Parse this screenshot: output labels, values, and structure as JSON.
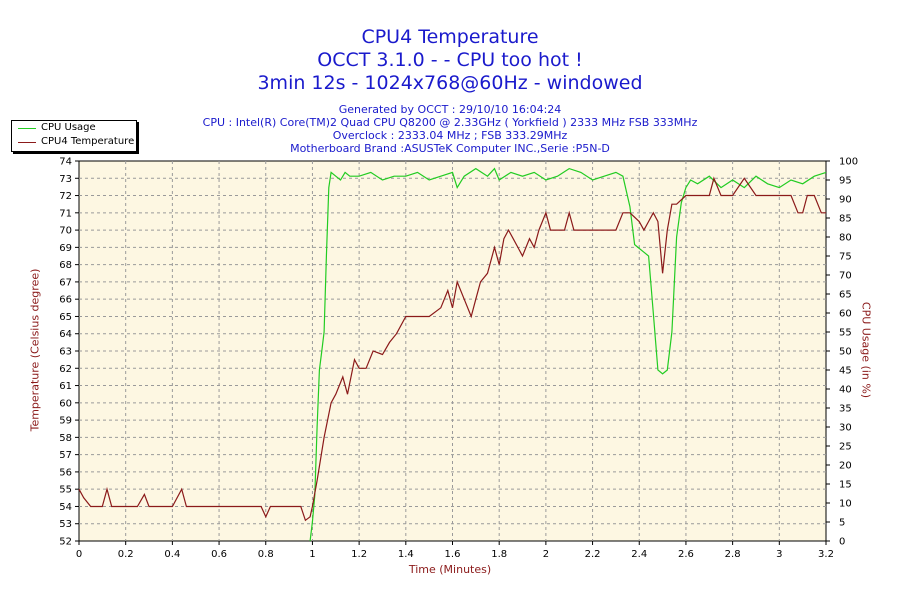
{
  "header": {
    "title_line1": "CPU4 Temperature",
    "title_line2": "OCCT 3.1.0 -  - CPU too hot !",
    "title_line3": "3min 12s - 1024x768@60Hz - windowed",
    "info_line1": "Generated by OCCT : 29/10/10 16:04:24",
    "info_line2": "CPU : Intel(R) Core(TM)2 Quad CPU Q8200 @ 2.33GHz ( Yorkfield ) 2333 MHz FSB 333MHz",
    "info_line3": "Overclock : 2333.04 MHz ; FSB 333.29MHz",
    "info_line4": "Motherboard Brand :ASUSTeK Computer INC.,Serie :P5N-D"
  },
  "chart_data": {
    "type": "line",
    "xlabel": "Time (Minutes)",
    "ylabel_left": "Temperature (Celsius degree)",
    "ylabel_right": "CPU Usage (in %)",
    "xlim": [
      0,
      3.2
    ],
    "ylim_left": [
      52,
      74
    ],
    "ylim_right": [
      0,
      100
    ],
    "grid": true,
    "legend_position": "top-left",
    "background_color": "#fdf7e2",
    "x_ticks": [
      "0",
      "0.2",
      "0.4",
      "0.6",
      "0.8",
      "1",
      "1.2",
      "1.4",
      "1.6",
      "1.8",
      "2",
      "2.2",
      "2.4",
      "2.6",
      "2.8",
      "3",
      "3.2"
    ],
    "y_ticks_left": [
      "52",
      "53",
      "54",
      "55",
      "56",
      "57",
      "58",
      "59",
      "60",
      "61",
      "62",
      "63",
      "64",
      "65",
      "66",
      "67",
      "68",
      "69",
      "70",
      "71",
      "72",
      "73",
      "74"
    ],
    "y_ticks_right": [
      "0",
      "5",
      "10",
      "15",
      "20",
      "25",
      "30",
      "35",
      "40",
      "45",
      "50",
      "55",
      "60",
      "65",
      "70",
      "75",
      "80",
      "85",
      "90",
      "95",
      "100"
    ],
    "series": [
      {
        "name": "CPU Usage",
        "axis": "right",
        "color": "#22cc22",
        "points": [
          [
            0.99,
            0
          ],
          [
            1.0,
            5
          ],
          [
            1.01,
            12
          ],
          [
            1.02,
            30
          ],
          [
            1.03,
            45
          ],
          [
            1.04,
            50
          ],
          [
            1.05,
            55
          ],
          [
            1.06,
            75
          ],
          [
            1.07,
            93
          ],
          [
            1.08,
            97
          ],
          [
            1.1,
            96
          ],
          [
            1.12,
            95
          ],
          [
            1.14,
            97
          ],
          [
            1.16,
            96
          ],
          [
            1.2,
            96
          ],
          [
            1.25,
            97
          ],
          [
            1.3,
            95
          ],
          [
            1.35,
            96
          ],
          [
            1.4,
            96
          ],
          [
            1.45,
            97
          ],
          [
            1.5,
            95
          ],
          [
            1.55,
            96
          ],
          [
            1.6,
            97
          ],
          [
            1.62,
            93
          ],
          [
            1.65,
            96
          ],
          [
            1.7,
            98
          ],
          [
            1.75,
            96
          ],
          [
            1.78,
            98
          ],
          [
            1.8,
            95
          ],
          [
            1.85,
            97
          ],
          [
            1.9,
            96
          ],
          [
            1.95,
            97
          ],
          [
            2.0,
            95
          ],
          [
            2.05,
            96
          ],
          [
            2.1,
            98
          ],
          [
            2.15,
            97
          ],
          [
            2.2,
            95
          ],
          [
            2.25,
            96
          ],
          [
            2.3,
            97
          ],
          [
            2.33,
            96
          ],
          [
            2.36,
            88
          ],
          [
            2.38,
            78
          ],
          [
            2.4,
            77
          ],
          [
            2.42,
            76
          ],
          [
            2.44,
            75
          ],
          [
            2.46,
            60
          ],
          [
            2.48,
            45
          ],
          [
            2.5,
            44
          ],
          [
            2.52,
            45
          ],
          [
            2.54,
            55
          ],
          [
            2.56,
            80
          ],
          [
            2.58,
            89
          ],
          [
            2.6,
            93
          ],
          [
            2.62,
            95
          ],
          [
            2.65,
            94
          ],
          [
            2.7,
            96
          ],
          [
            2.75,
            93
          ],
          [
            2.8,
            95
          ],
          [
            2.85,
            93
          ],
          [
            2.9,
            96
          ],
          [
            2.95,
            94
          ],
          [
            3.0,
            93
          ],
          [
            3.05,
            95
          ],
          [
            3.1,
            94
          ],
          [
            3.15,
            96
          ],
          [
            3.2,
            97
          ]
        ]
      },
      {
        "name": "CPU4 Temperature",
        "axis": "left",
        "color": "#8b1a1a",
        "points": [
          [
            0.0,
            55
          ],
          [
            0.02,
            54.5
          ],
          [
            0.05,
            54
          ],
          [
            0.1,
            54
          ],
          [
            0.12,
            55
          ],
          [
            0.14,
            54
          ],
          [
            0.2,
            54
          ],
          [
            0.25,
            54
          ],
          [
            0.28,
            54.7
          ],
          [
            0.3,
            54
          ],
          [
            0.4,
            54
          ],
          [
            0.44,
            55
          ],
          [
            0.46,
            54
          ],
          [
            0.5,
            54
          ],
          [
            0.6,
            54
          ],
          [
            0.7,
            54
          ],
          [
            0.78,
            54
          ],
          [
            0.8,
            53.4
          ],
          [
            0.82,
            54
          ],
          [
            0.9,
            54
          ],
          [
            0.95,
            54
          ],
          [
            0.97,
            53.2
          ],
          [
            0.99,
            53.4
          ],
          [
            1.0,
            54
          ],
          [
            1.02,
            55.5
          ],
          [
            1.05,
            58
          ],
          [
            1.08,
            60
          ],
          [
            1.1,
            60.5
          ],
          [
            1.13,
            61.5
          ],
          [
            1.15,
            60.5
          ],
          [
            1.18,
            62.5
          ],
          [
            1.2,
            62
          ],
          [
            1.23,
            62
          ],
          [
            1.26,
            63
          ],
          [
            1.3,
            62.8
          ],
          [
            1.33,
            63.5
          ],
          [
            1.36,
            64
          ],
          [
            1.4,
            65
          ],
          [
            1.45,
            65
          ],
          [
            1.5,
            65
          ],
          [
            1.55,
            65.5
          ],
          [
            1.58,
            66.5
          ],
          [
            1.6,
            65.5
          ],
          [
            1.62,
            67
          ],
          [
            1.65,
            66
          ],
          [
            1.68,
            65
          ],
          [
            1.7,
            66
          ],
          [
            1.72,
            67
          ],
          [
            1.75,
            67.5
          ],
          [
            1.78,
            69
          ],
          [
            1.8,
            68
          ],
          [
            1.82,
            69.5
          ],
          [
            1.84,
            70
          ],
          [
            1.86,
            69.5
          ],
          [
            1.88,
            69
          ],
          [
            1.9,
            68.5
          ],
          [
            1.93,
            69.5
          ],
          [
            1.95,
            69
          ],
          [
            1.97,
            70
          ],
          [
            2.0,
            71
          ],
          [
            2.02,
            70
          ],
          [
            2.05,
            70
          ],
          [
            2.08,
            70
          ],
          [
            2.1,
            71
          ],
          [
            2.12,
            70
          ],
          [
            2.2,
            70
          ],
          [
            2.3,
            70
          ],
          [
            2.33,
            71
          ],
          [
            2.36,
            71
          ],
          [
            2.4,
            70.5
          ],
          [
            2.42,
            70
          ],
          [
            2.44,
            70.5
          ],
          [
            2.46,
            71
          ],
          [
            2.48,
            70.5
          ],
          [
            2.5,
            67.5
          ],
          [
            2.52,
            70
          ],
          [
            2.54,
            71.5
          ],
          [
            2.56,
            71.5
          ],
          [
            2.6,
            72
          ],
          [
            2.65,
            72
          ],
          [
            2.7,
            72
          ],
          [
            2.72,
            73
          ],
          [
            2.75,
            72
          ],
          [
            2.8,
            72
          ],
          [
            2.85,
            73
          ],
          [
            2.9,
            72
          ],
          [
            2.95,
            72
          ],
          [
            3.0,
            72
          ],
          [
            3.05,
            72
          ],
          [
            3.08,
            71
          ],
          [
            3.1,
            71
          ],
          [
            3.12,
            72
          ],
          [
            3.15,
            72
          ],
          [
            3.18,
            71
          ],
          [
            3.2,
            71
          ]
        ]
      }
    ]
  }
}
